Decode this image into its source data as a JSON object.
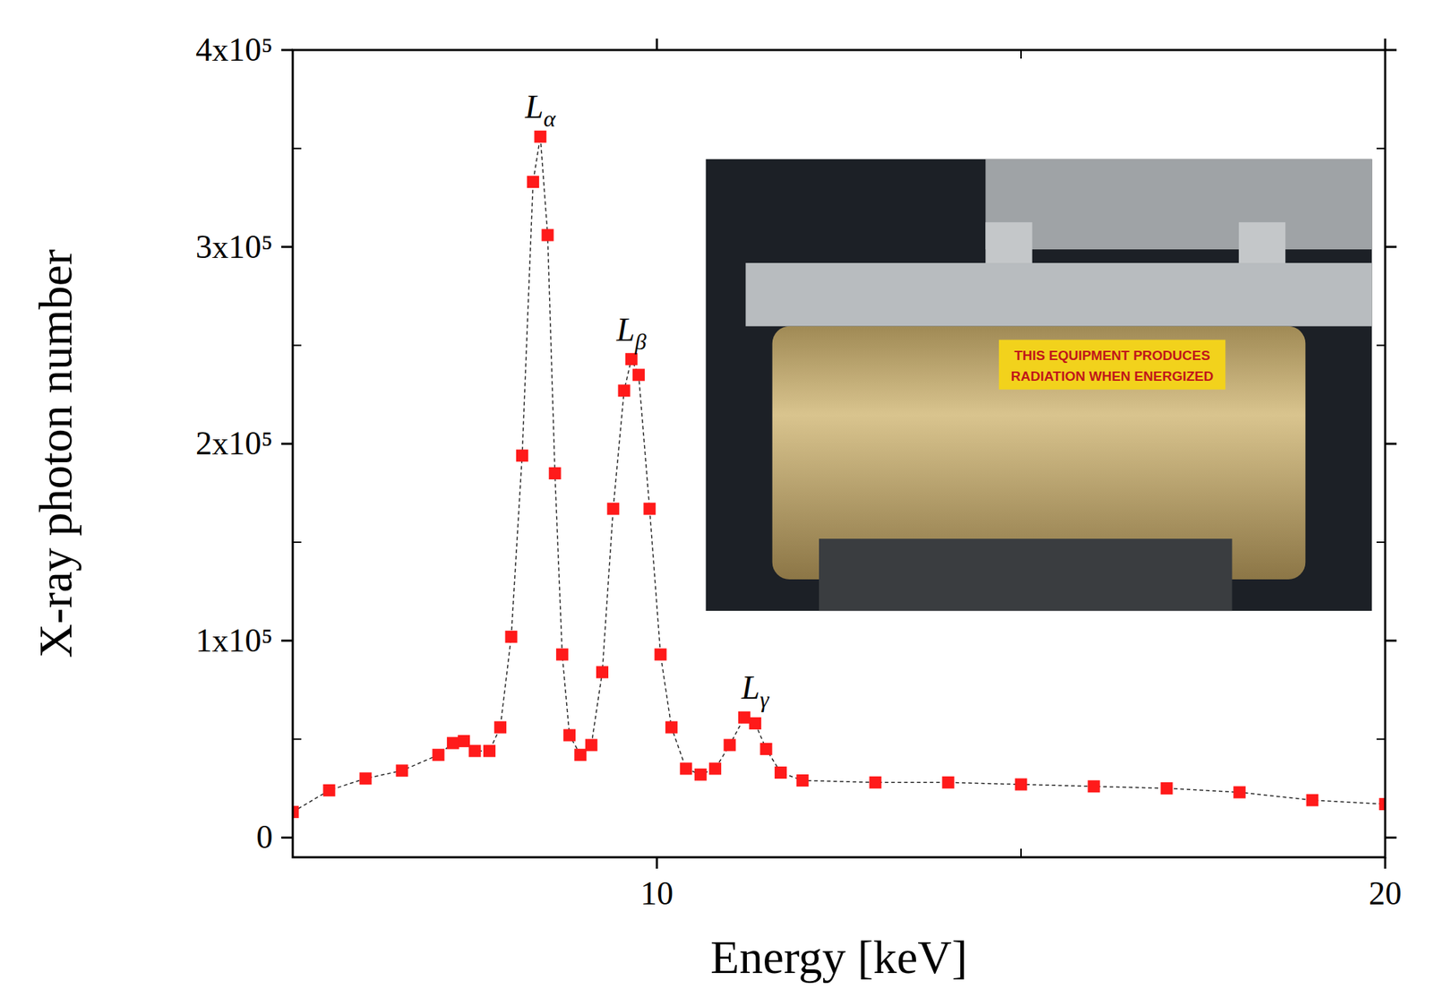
{
  "chart_data": {
    "type": "line",
    "x_label": "Energy [keV]",
    "y_label": "X-ray photon number",
    "x": [
      5,
      5.5,
      6,
      6.5,
      7.0,
      7.2,
      7.35,
      7.5,
      7.7,
      7.85,
      8.0,
      8.15,
      8.3,
      8.4,
      8.5,
      8.6,
      8.7,
      8.8,
      8.95,
      9.1,
      9.25,
      9.4,
      9.55,
      9.65,
      9.75,
      9.9,
      10.05,
      10.2,
      10.4,
      10.6,
      10.8,
      11.0,
      11.2,
      11.35,
      11.5,
      11.7,
      12,
      13,
      14,
      15,
      16,
      17,
      18,
      19,
      20
    ],
    "values": [
      13000,
      24000,
      30000,
      34000,
      42000,
      48000,
      49000,
      44000,
      44000,
      56000,
      102000,
      194000,
      333000,
      356000,
      306000,
      185000,
      93000,
      52000,
      42000,
      47000,
      84000,
      167000,
      227000,
      243000,
      235000,
      167000,
      93000,
      56000,
      35000,
      32000,
      35000,
      47000,
      61000,
      58000,
      45000,
      33000,
      29000,
      28000,
      28000,
      27000,
      26000,
      25000,
      23000,
      19000,
      17000
    ],
    "color": "#ff1a1a",
    "marker": "square",
    "line_style": "dashed",
    "xlim": [
      5,
      20
    ],
    "xticks": [
      10,
      20
    ],
    "ylim": [
      -10000,
      400000
    ],
    "yticks": [
      0,
      {
        "value": 100000,
        "label": "1x10⁵"
      },
      {
        "value": 200000,
        "label": "2x10⁵"
      },
      {
        "value": 300000,
        "label": "3x10⁵"
      },
      {
        "value": 400000,
        "label": "4x10⁵"
      }
    ],
    "grid": false,
    "annotations": [
      {
        "text": "L",
        "subscript": "α",
        "x": 8.4,
        "y": 356000
      },
      {
        "text": "L",
        "subscript": "β",
        "x": 9.65,
        "y": 243000
      },
      {
        "text": "L",
        "subscript": "γ",
        "x": 11.35,
        "y": 61000
      }
    ],
    "inset_label": [
      "THIS EQUIPMENT PRODUCES",
      "RADIATION WHEN ENERGIZED"
    ]
  }
}
